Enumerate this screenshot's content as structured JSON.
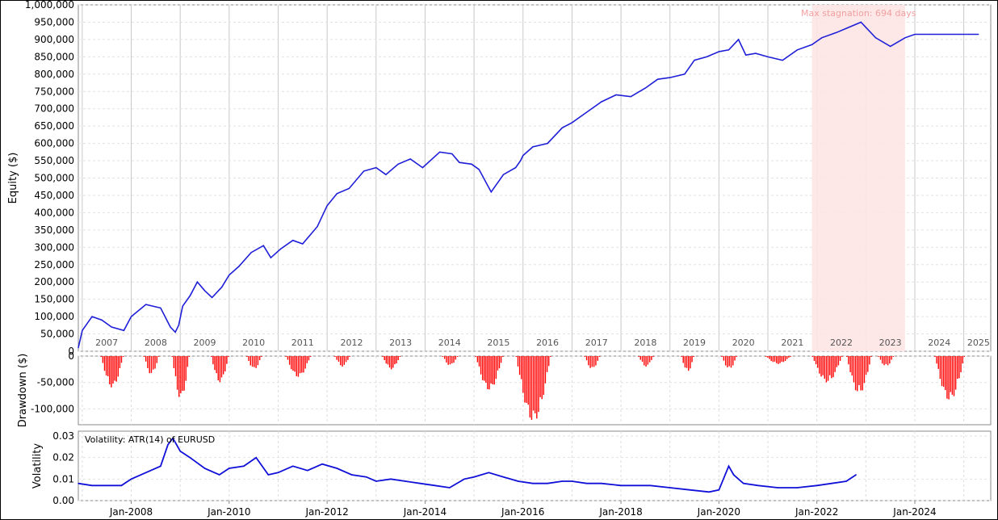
{
  "chart_data": [
    {
      "type": "line",
      "name": "equity",
      "ylabel": "Equity ($)",
      "ylim": [
        0,
        1000000
      ],
      "yticks": [
        "1,000,000",
        "950,000",
        "900,000",
        "850,000",
        "800,000",
        "750,000",
        "700,000",
        "650,000",
        "600,000",
        "550,000",
        "500,000",
        "450,000",
        "400,000",
        "350,000",
        "300,000",
        "250,000",
        "200,000",
        "150,000",
        "100,000",
        "50,000",
        "0"
      ],
      "year_labels": [
        "2007",
        "2008",
        "2009",
        "2010",
        "2011",
        "2012",
        "2013",
        "2014",
        "2015",
        "2016",
        "2017",
        "2018",
        "2019",
        "2020",
        "2021",
        "2022",
        "2023",
        "2024",
        "2025"
      ],
      "annotation": "Max stagnation: 694 days",
      "stagnation_period": {
        "start": 2021.9,
        "end": 2023.8
      },
      "grid": true,
      "line_color": "#1f1fd8",
      "stagnation_color": "#fde4e4",
      "x": [
        2006.92,
        2007.0,
        2007.2,
        2007.4,
        2007.6,
        2007.85,
        2008.0,
        2008.3,
        2008.6,
        2008.8,
        2008.9,
        2008.97,
        2009.05,
        2009.2,
        2009.35,
        2009.5,
        2009.65,
        2009.85,
        2010.0,
        2010.2,
        2010.45,
        2010.7,
        2010.85,
        2011.05,
        2011.3,
        2011.5,
        2011.8,
        2012.0,
        2012.2,
        2012.45,
        2012.75,
        2013.0,
        2013.2,
        2013.45,
        2013.7,
        2013.95,
        2014.3,
        2014.55,
        2014.7,
        2014.95,
        2015.1,
        2015.35,
        2015.6,
        2015.85,
        2015.95,
        2016.0,
        2016.2,
        2016.5,
        2016.8,
        2017.0,
        2017.3,
        2017.6,
        2017.9,
        2018.2,
        2018.5,
        2018.75,
        2019.0,
        2019.3,
        2019.5,
        2019.75,
        2020.0,
        2020.2,
        2020.4,
        2020.55,
        2020.75,
        2021.0,
        2021.3,
        2021.6,
        2021.9,
        2022.1,
        2022.4,
        2022.65,
        2022.9,
        2023.2,
        2023.5,
        2023.8,
        2024.0,
        2024.15,
        2024.3,
        2024.45,
        2024.6,
        2024.75,
        2024.9,
        2025.1,
        2025.3
      ],
      "values": [
        10000,
        60000,
        100000,
        90000,
        70000,
        60000,
        100000,
        135000,
        125000,
        70000,
        55000,
        75000,
        130000,
        160000,
        200000,
        175000,
        155000,
        185000,
        220000,
        245000,
        285000,
        305000,
        270000,
        295000,
        320000,
        310000,
        360000,
        420000,
        455000,
        470000,
        520000,
        530000,
        510000,
        540000,
        555000,
        530000,
        575000,
        570000,
        545000,
        540000,
        525000,
        460000,
        510000,
        530000,
        550000,
        565000,
        590000,
        600000,
        645000,
        660000,
        690000,
        720000,
        740000,
        735000,
        760000,
        785000,
        790000,
        800000,
        840000,
        850000,
        865000,
        870000,
        900000,
        855000,
        860000,
        850000,
        840000,
        870000,
        885000,
        905000,
        920000,
        935000,
        950000,
        905000,
        880000,
        905000,
        915000,
        915000,
        915000,
        915000,
        915000,
        915000,
        915000,
        915000,
        915000
      ]
    },
    {
      "type": "bar",
      "name": "drawdown",
      "ylabel": "Drawdown ($)",
      "ylim": [
        -130000,
        0
      ],
      "yticks": [
        "0",
        "-50,000",
        "-100,000"
      ],
      "bar_color": "#ff0000",
      "grid": true,
      "events": [
        {
          "x": 2007.6,
          "width": 0.45,
          "depth": -60000
        },
        {
          "x": 2008.4,
          "width": 0.3,
          "depth": -35000
        },
        {
          "x": 2009.0,
          "width": 0.35,
          "depth": -82000
        },
        {
          "x": 2009.8,
          "width": 0.35,
          "depth": -50000
        },
        {
          "x": 2010.5,
          "width": 0.3,
          "depth": -25000
        },
        {
          "x": 2011.4,
          "width": 0.5,
          "depth": -40000
        },
        {
          "x": 2012.3,
          "width": 0.3,
          "depth": -20000
        },
        {
          "x": 2013.3,
          "width": 0.35,
          "depth": -25000
        },
        {
          "x": 2014.5,
          "width": 0.3,
          "depth": -18000
        },
        {
          "x": 2015.3,
          "width": 0.55,
          "depth": -65000
        },
        {
          "x": 2016.2,
          "width": 0.7,
          "depth": -125000
        },
        {
          "x": 2017.4,
          "width": 0.3,
          "depth": -25000
        },
        {
          "x": 2018.5,
          "width": 0.3,
          "depth": -20000
        },
        {
          "x": 2019.35,
          "width": 0.25,
          "depth": -30000
        },
        {
          "x": 2020.2,
          "width": 0.3,
          "depth": -25000
        },
        {
          "x": 2021.2,
          "width": 0.5,
          "depth": -15000
        },
        {
          "x": 2022.2,
          "width": 0.6,
          "depth": -50000
        },
        {
          "x": 2022.85,
          "width": 0.5,
          "depth": -72000
        },
        {
          "x": 2023.4,
          "width": 0.3,
          "depth": -20000
        },
        {
          "x": 2024.7,
          "width": 0.6,
          "depth": -85000
        }
      ]
    },
    {
      "type": "line",
      "name": "volatility",
      "ylabel": "Volatility",
      "legend": "Volatility: ATR(14) of EURUSD",
      "ylim": [
        0,
        0.03
      ],
      "yticks": [
        "0.03",
        "0.02",
        "0.01",
        "0.00"
      ],
      "xticks": [
        "Jan-2008",
        "Jan-2010",
        "Jan-2012",
        "Jan-2014",
        "Jan-2016",
        "Jan-2018",
        "Jan-2020",
        "Jan-2022",
        "Jan-2024"
      ],
      "line_color": "#1010d8",
      "grid": true,
      "x": [
        2006.92,
        2007.2,
        2007.5,
        2007.8,
        2008.0,
        2008.3,
        2008.6,
        2008.75,
        2008.85,
        2009.0,
        2009.2,
        2009.5,
        2009.8,
        2010.0,
        2010.3,
        2010.55,
        2010.8,
        2011.0,
        2011.3,
        2011.6,
        2011.9,
        2012.2,
        2012.5,
        2012.8,
        2013.0,
        2013.3,
        2013.6,
        2013.9,
        2014.2,
        2014.5,
        2014.8,
        2015.0,
        2015.3,
        2015.6,
        2015.9,
        2016.2,
        2016.5,
        2016.8,
        2017.0,
        2017.3,
        2017.6,
        2018.0,
        2018.3,
        2018.6,
        2019.0,
        2019.4,
        2019.8,
        2020.0,
        2020.2,
        2020.3,
        2020.5,
        2020.8,
        2021.2,
        2021.6,
        2022.0,
        2022.3,
        2022.6,
        2022.8
      ],
      "values": [
        0.008,
        0.007,
        0.007,
        0.007,
        0.01,
        0.013,
        0.016,
        0.026,
        0.029,
        0.023,
        0.02,
        0.015,
        0.012,
        0.015,
        0.016,
        0.02,
        0.012,
        0.013,
        0.016,
        0.014,
        0.017,
        0.015,
        0.012,
        0.011,
        0.009,
        0.01,
        0.009,
        0.008,
        0.007,
        0.006,
        0.01,
        0.011,
        0.013,
        0.011,
        0.009,
        0.008,
        0.008,
        0.009,
        0.009,
        0.008,
        0.008,
        0.007,
        0.007,
        0.007,
        0.006,
        0.005,
        0.004,
        0.005,
        0.016,
        0.012,
        0.008,
        0.007,
        0.006,
        0.006,
        0.007,
        0.008,
        0.009,
        0.012
      ]
    }
  ]
}
